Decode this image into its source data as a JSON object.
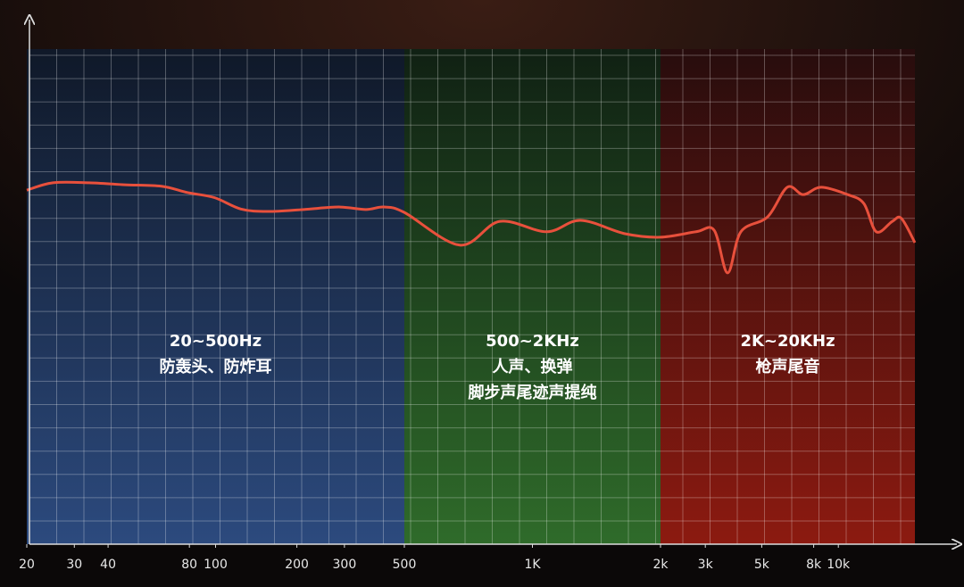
{
  "chart_data": {
    "type": "line",
    "x": [
      20,
      25,
      34,
      46,
      63,
      79,
      99,
      124,
      156,
      212,
      286,
      360,
      420,
      500,
      675,
      838,
      1080,
      1297,
      1650,
      2000,
      2760,
      3250,
      3670,
      4140,
      5270,
      6300,
      7280,
      8560,
      10900,
      12600,
      14100,
      16300,
      17700,
      20000
    ],
    "values": [
      71.5,
      73,
      73,
      72.6,
      72.3,
      71,
      70,
      67.7,
      67.2,
      67.6,
      68.1,
      67.6,
      68.1,
      67,
      60.4,
      65.2,
      63.1,
      65.4,
      62.7,
      62,
      63.1,
      63.4,
      54.8,
      63.1,
      66.1,
      72.1,
      70.6,
      72.1,
      70.6,
      68.8,
      63.1,
      65.2,
      65.8,
      60.9
    ],
    "color": "#e8503c",
    "xscale": "log",
    "ylim": [
      0,
      100
    ],
    "xticks": [
      20,
      30,
      40,
      80,
      100,
      200,
      300,
      500,
      {
        "value": 1000,
        "label": "1K"
      },
      {
        "value": 2000,
        "label": "2k"
      },
      {
        "value": 3000,
        "label": "3k"
      },
      {
        "value": 5000,
        "label": "5k"
      },
      {
        "value": 8000,
        "label": "8k"
      },
      {
        "value": 10000,
        "label": "10k"
      }
    ],
    "bands": [
      {
        "range": [
          20,
          500
        ],
        "color": "#2c4a7e",
        "lines": [
          "20~500Hz",
          "防轰头、防炸耳"
        ]
      },
      {
        "range": [
          500,
          2000
        ],
        "color": "#2f6b2a",
        "lines": [
          "500~2KHz",
          "人声、换弹",
          "脚步声尾迹声提纯"
        ]
      },
      {
        "range": [
          2000,
          20000
        ],
        "color": "#8c1a10",
        "lines": [
          "2K~20KHz",
          "枪声尾音"
        ]
      }
    ],
    "grid": true
  }
}
